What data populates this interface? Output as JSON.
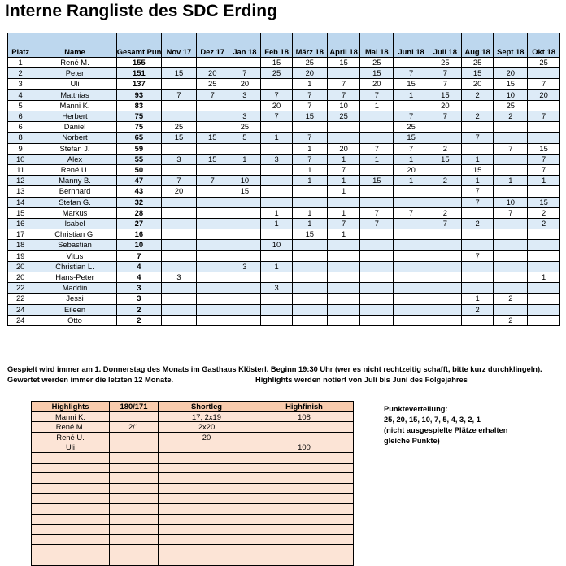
{
  "title": "Interne Rangliste des SDC Erding",
  "rank_table": {
    "headers": [
      "Platz",
      "Name",
      "Gesamt Punkte",
      "Nov 17",
      "Dez 17",
      "Jan 18",
      "Feb 18",
      "März 18",
      "April 18",
      "Mai 18",
      "Juni 18",
      "Juli 18",
      "Aug 18",
      "Sept 18",
      "Okt 18"
    ],
    "rows": [
      [
        "1",
        "René M.",
        "155",
        "",
        "",
        "",
        "15",
        "25",
        "15",
        "25",
        "",
        "25",
        "25",
        "",
        "25"
      ],
      [
        "2",
        "Peter",
        "151",
        "15",
        "20",
        "7",
        "25",
        "20",
        "",
        "15",
        "7",
        "7",
        "15",
        "20",
        ""
      ],
      [
        "3",
        "Uli",
        "137",
        "",
        "25",
        "20",
        "",
        "1",
        "7",
        "20",
        "15",
        "7",
        "20",
        "15",
        "7"
      ],
      [
        "4",
        "Matthias",
        "93",
        "7",
        "7",
        "3",
        "7",
        "7",
        "7",
        "7",
        "1",
        "15",
        "2",
        "10",
        "20"
      ],
      [
        "5",
        "Manni K.",
        "83",
        "",
        "",
        "",
        "20",
        "7",
        "10",
        "1",
        "",
        "20",
        "",
        "25",
        ""
      ],
      [
        "6",
        "Herbert",
        "75",
        "",
        "",
        "3",
        "7",
        "15",
        "25",
        "",
        "7",
        "7",
        "2",
        "2",
        "7"
      ],
      [
        "6",
        "Daniel",
        "75",
        "25",
        "",
        "25",
        "",
        "",
        "",
        "",
        "25",
        "",
        "",
        "",
        ""
      ],
      [
        "8",
        "Norbert",
        "65",
        "15",
        "15",
        "5",
        "1",
        "7",
        "",
        "",
        "15",
        "",
        "7",
        "",
        ""
      ],
      [
        "9",
        "Stefan J.",
        "59",
        "",
        "",
        "",
        "",
        "1",
        "20",
        "7",
        "7",
        "2",
        "",
        "7",
        "15"
      ],
      [
        "10",
        "Alex",
        "55",
        "3",
        "15",
        "1",
        "3",
        "7",
        "1",
        "1",
        "1",
        "15",
        "1",
        "",
        "7"
      ],
      [
        "11",
        "René U.",
        "50",
        "",
        "",
        "",
        "",
        "1",
        "7",
        "",
        "20",
        "",
        "15",
        "",
        "7"
      ],
      [
        "12",
        "Manny B.",
        "47",
        "7",
        "7",
        "10",
        "",
        "1",
        "1",
        "15",
        "1",
        "2",
        "1",
        "1",
        "1"
      ],
      [
        "13",
        "Bernhard",
        "43",
        "20",
        "",
        "15",
        "",
        "",
        "1",
        "",
        "",
        "",
        "7",
        "",
        ""
      ],
      [
        "14",
        "Stefan G.",
        "32",
        "",
        "",
        "",
        "",
        "",
        "",
        "",
        "",
        "",
        "7",
        "10",
        "15"
      ],
      [
        "15",
        "Markus",
        "28",
        "",
        "",
        "",
        "1",
        "1",
        "1",
        "7",
        "7",
        "2",
        "",
        "7",
        "2"
      ],
      [
        "16",
        "Isabel",
        "27",
        "",
        "",
        "",
        "1",
        "1",
        "7",
        "7",
        "",
        "7",
        "2",
        "",
        "2"
      ],
      [
        "17",
        "Christian G.",
        "16",
        "",
        "",
        "",
        "",
        "15",
        "1",
        "",
        "",
        "",
        "",
        "",
        ""
      ],
      [
        "18",
        "Sebastian",
        "10",
        "",
        "",
        "",
        "10",
        "",
        "",
        "",
        "",
        "",
        "",
        "",
        ""
      ],
      [
        "19",
        "Vitus",
        "7",
        "",
        "",
        "",
        "",
        "",
        "",
        "",
        "",
        "",
        "7",
        "",
        ""
      ],
      [
        "20",
        "Christian L.",
        "4",
        "",
        "",
        "3",
        "1",
        "",
        "",
        "",
        "",
        "",
        "",
        "",
        ""
      ],
      [
        "20",
        "Hans-Peter",
        "4",
        "3",
        "",
        "",
        "",
        "",
        "",
        "",
        "",
        "",
        "",
        "",
        "1"
      ],
      [
        "22",
        "Maddin",
        "3",
        "",
        "",
        "",
        "3",
        "",
        "",
        "",
        "",
        "",
        "",
        "",
        ""
      ],
      [
        "22",
        "Jessi",
        "3",
        "",
        "",
        "",
        "",
        "",
        "",
        "",
        "",
        "",
        "1",
        "2",
        ""
      ],
      [
        "24",
        "Eileen",
        "2",
        "",
        "",
        "",
        "",
        "",
        "",
        "",
        "",
        "",
        "2",
        "",
        ""
      ],
      [
        "24",
        "Otto",
        "2",
        "",
        "",
        "",
        "",
        "",
        "",
        "",
        "",
        "",
        "",
        "2",
        ""
      ]
    ]
  },
  "notes": {
    "line1": "Gespielt wird immer am 1. Donnerstag des Monats im Gasthaus Klösterl. Beginn 19:30 Uhr (wer es nicht rechtzeitig schafft, bitte kurz durchklingeln).",
    "line2a": "Gewertet werden immer die letzten 12 Monate.",
    "line2b": "Highlights werden notiert von Juli bis Juni des Folgejahres"
  },
  "highlights_table": {
    "headers": [
      "Highlights",
      "180/171",
      "Shortleg",
      "Highfinish"
    ],
    "rows": [
      [
        "Manni K.",
        "",
        "17, 2x19",
        "108"
      ],
      [
        "René M.",
        "2/1",
        "2x20",
        ""
      ],
      [
        "René U.",
        "",
        "20",
        ""
      ],
      [
        "Uli",
        "",
        "",
        "100"
      ],
      [
        "",
        "",
        "",
        ""
      ],
      [
        "",
        "",
        "",
        ""
      ],
      [
        "",
        "",
        "",
        ""
      ],
      [
        "",
        "",
        "",
        ""
      ],
      [
        "",
        "",
        "",
        ""
      ],
      [
        "",
        "",
        "",
        ""
      ],
      [
        "",
        "",
        "",
        ""
      ],
      [
        "",
        "",
        "",
        ""
      ],
      [
        "",
        "",
        "",
        ""
      ],
      [
        "",
        "",
        "",
        ""
      ],
      [
        "",
        "",
        "",
        ""
      ]
    ]
  },
  "punkteverteilung": {
    "title": "Punkteverteilung:",
    "values": "25, 20, 15, 10, 7, 5, 4, 3, 2, 1",
    "note1": "(nicht ausgespielte Plätze erhalten",
    "note2": "gleiche Punkte)"
  }
}
